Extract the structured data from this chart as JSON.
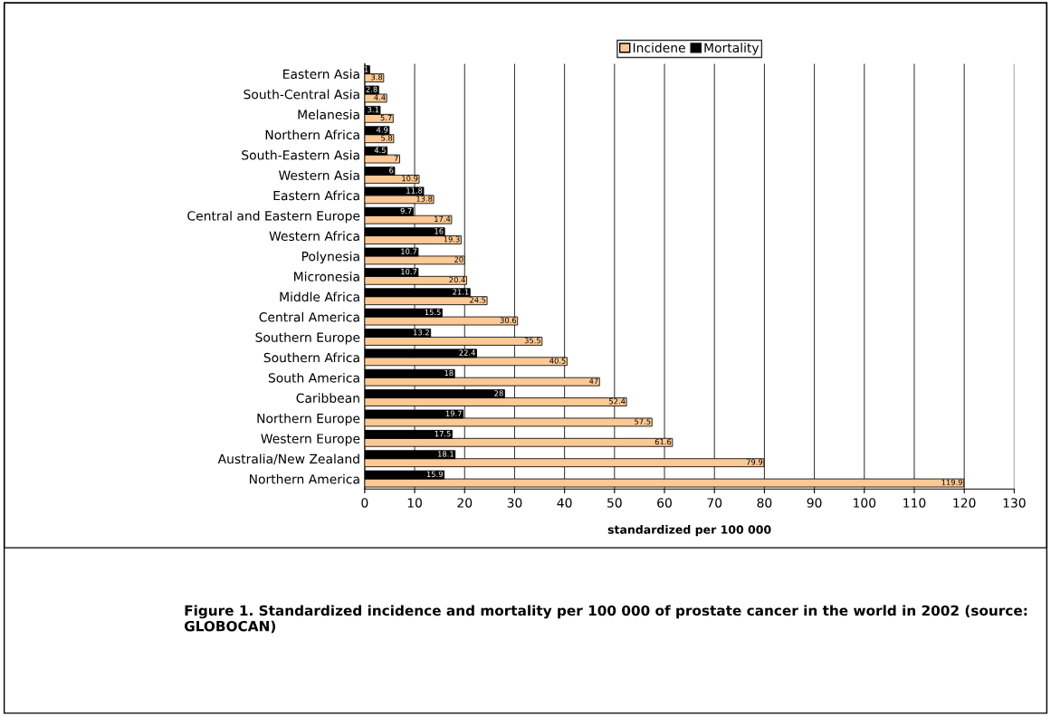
{
  "chart_data": {
    "type": "bar",
    "orientation": "horizontal",
    "title": "Figure 1. Standardized incidence and mortality per 100 000 of prostate cancer in the world in 2002 (source: GLOBOCAN)",
    "xlabel": "standardized per 100 000",
    "categories": [
      "Eastern Asia",
      "South-Central Asia",
      "Melanesia",
      "Northern Africa",
      "South-Eastern Asia",
      "Western Asia",
      "Eastern Africa",
      "Central and Eastern Europe",
      "Western Africa",
      "Polynesia",
      "Micronesia",
      "Middle Africa",
      "Central America",
      "Southern Europe",
      "Southern Africa",
      "South America",
      "Caribbean",
      "Northern Europe",
      "Western Europe",
      "Australia/New Zealand",
      "Northern America"
    ],
    "series": [
      {
        "name": "Incidene",
        "color": "#fcc995",
        "values": [
          3.8,
          4.4,
          5.7,
          5.8,
          7,
          10.9,
          13.8,
          17.4,
          19.3,
          20,
          20.4,
          24.5,
          30.6,
          35.5,
          40.5,
          47,
          52.4,
          57.5,
          61.6,
          79.9,
          119.9
        ]
      },
      {
        "name": "Mortality",
        "color": "#000000",
        "values": [
          1,
          2.8,
          3.1,
          4.9,
          4.5,
          6,
          11.8,
          9.7,
          16,
          10.7,
          10.7,
          21.1,
          15.5,
          13.2,
          22.4,
          18,
          28,
          19.7,
          17.5,
          18.1,
          15.9
        ]
      }
    ],
    "xlim": [
      0,
      130
    ],
    "xticks": [
      0,
      10,
      20,
      30,
      40,
      50,
      60,
      70,
      80,
      90,
      100,
      110,
      120,
      130
    ],
    "data_labels": true,
    "legend": "top",
    "grid": "x"
  }
}
